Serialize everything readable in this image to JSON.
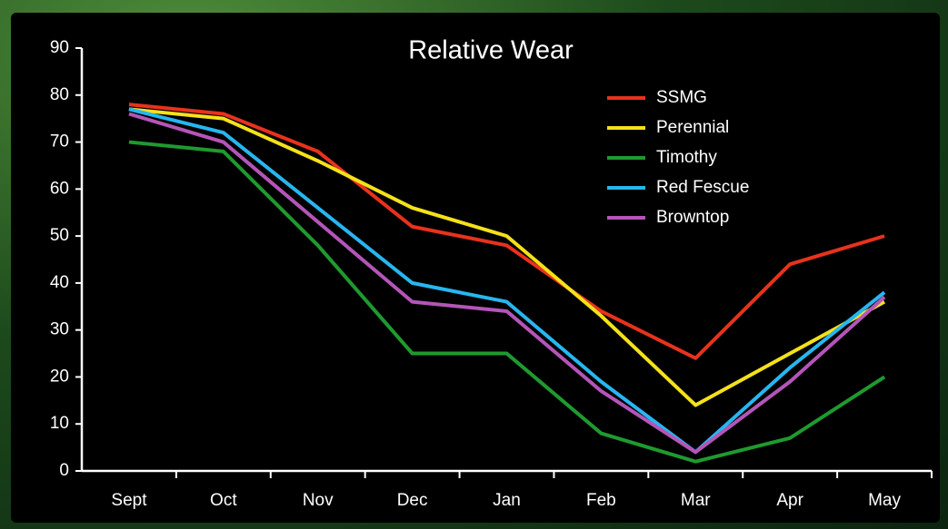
{
  "chart_data": {
    "type": "line",
    "title": "Relative Wear",
    "categories": [
      "Sept",
      "Oct",
      "Nov",
      "Dec",
      "Jan",
      "Feb",
      "Mar",
      "Apr",
      "May"
    ],
    "series": [
      {
        "name": "SSMG",
        "color": "#e8321c",
        "values": [
          78,
          76,
          68,
          52,
          48,
          34,
          24,
          44,
          50
        ]
      },
      {
        "name": "Perennial",
        "color": "#f5e11a",
        "values": [
          77,
          75,
          66,
          56,
          50,
          33,
          14,
          25,
          36
        ]
      },
      {
        "name": "Timothy",
        "color": "#1f9a2e",
        "values": [
          70,
          68,
          48,
          25,
          25,
          8,
          2,
          7,
          20
        ]
      },
      {
        "name": "Red Fescue",
        "color": "#27b6f0",
        "values": [
          77,
          72,
          56,
          40,
          36,
          19,
          4,
          22,
          38
        ]
      },
      {
        "name": "Browntop",
        "color": "#b455b8",
        "values": [
          76,
          70,
          53,
          36,
          34,
          17,
          4,
          19,
          37
        ]
      }
    ],
    "ylim": [
      0,
      90
    ],
    "yticks": [
      0,
      10,
      20,
      30,
      40,
      50,
      60,
      70,
      80,
      90
    ]
  }
}
